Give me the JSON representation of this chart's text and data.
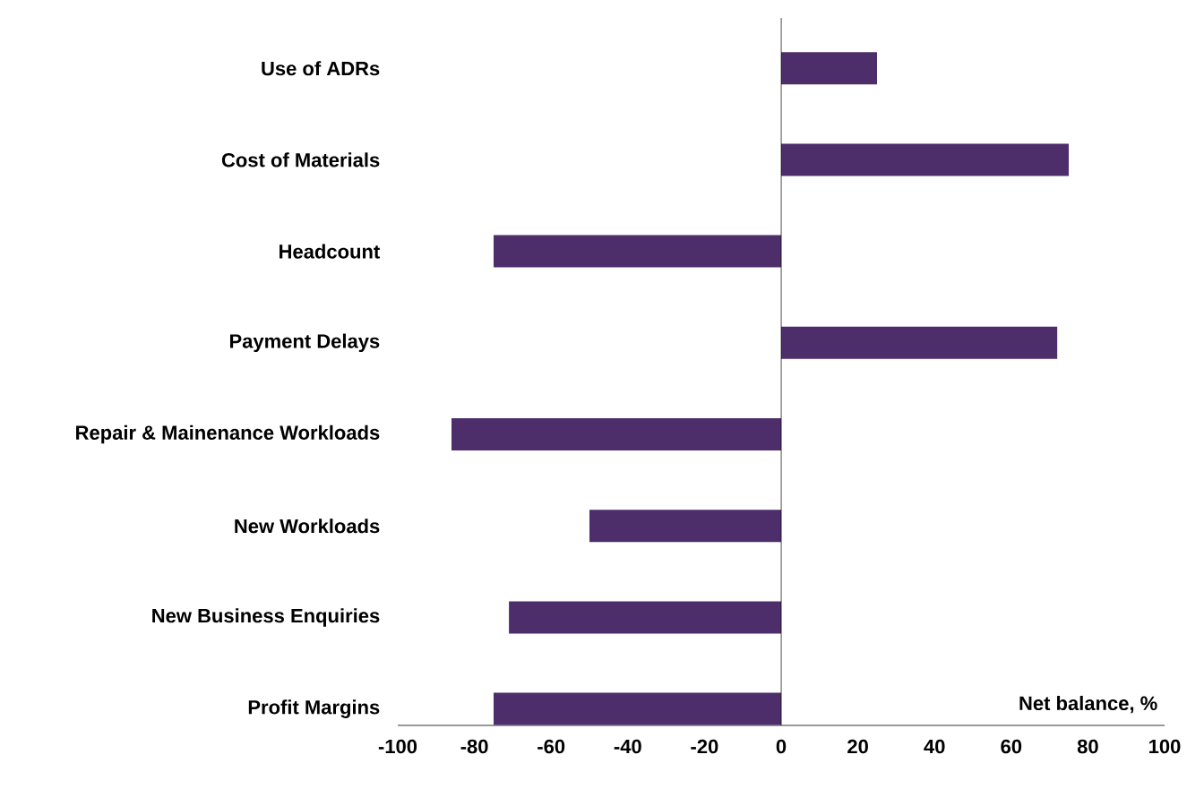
{
  "chart_data": {
    "type": "bar",
    "orientation": "horizontal",
    "categories": [
      "Use of ADRs",
      "Cost of Materials",
      "Headcount",
      "Payment Delays",
      "Repair & Mainenance Workloads",
      "New Workloads",
      "New Business Enquiries",
      "Profit Margins"
    ],
    "values": [
      25,
      75,
      -75,
      72,
      -86,
      -50,
      -71,
      -75
    ],
    "color": "#4e2d6b",
    "xlabel": "Net balance, %",
    "xlim": [
      -100,
      100
    ],
    "xticks": [
      -100,
      -80,
      -60,
      -40,
      -20,
      0,
      20,
      40,
      60,
      80,
      100
    ]
  }
}
